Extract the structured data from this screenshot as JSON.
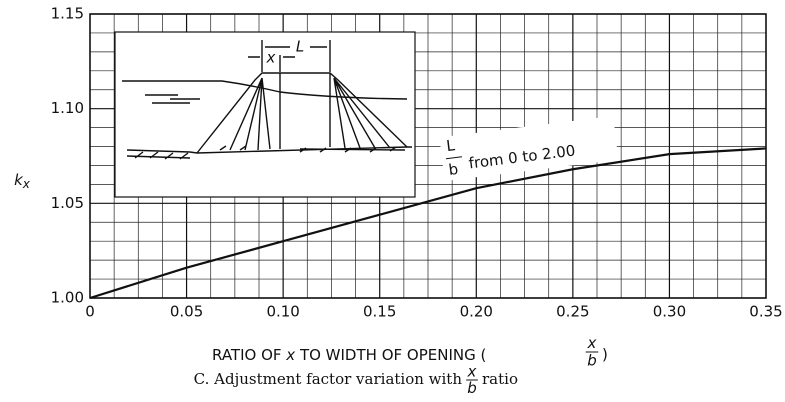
{
  "chart_data": {
    "type": "line",
    "ylabel": {
      "main": "k",
      "subscript": "x"
    },
    "xlabel_parts": [
      "RATIO OF ",
      "x",
      " TO WIDTH OF OPENING (",
      ")"
    ],
    "xlabel_fraction": {
      "numerator": "x",
      "denominator": "b"
    },
    "caption_parts": [
      "C. Adjustment factor variation with",
      "ratio"
    ],
    "caption_fraction": {
      "numerator": "x",
      "denominator": "b"
    },
    "annotation": {
      "numerator": "L",
      "denominator": "b",
      "text": "from 0 to 2.00"
    },
    "inset_labels": [
      "L",
      "x"
    ],
    "x": [
      0,
      0.05,
      0.1,
      0.15,
      0.2,
      0.25,
      0.3,
      0.35
    ],
    "series": [
      {
        "name": "k_x",
        "color": "#111111",
        "values": [
          1.0,
          1.016,
          1.03,
          1.044,
          1.058,
          1.068,
          1.076,
          1.079
        ]
      }
    ],
    "xlim": [
      0,
      0.35
    ],
    "xticks": [
      0,
      0.05,
      {
        "value": 0.1,
        "label": "0.10"
      },
      0.15,
      {
        "value": 0.2,
        "label": "0.20"
      },
      0.25,
      {
        "value": 0.3,
        "label": "0.30"
      },
      0.35
    ],
    "ylim": [
      1.0,
      1.15
    ],
    "yticks": [
      {
        "value": 1.0,
        "label": "1.00"
      },
      1.05,
      {
        "value": 1.1,
        "label": "1.10"
      },
      1.15
    ],
    "grid": true
  }
}
